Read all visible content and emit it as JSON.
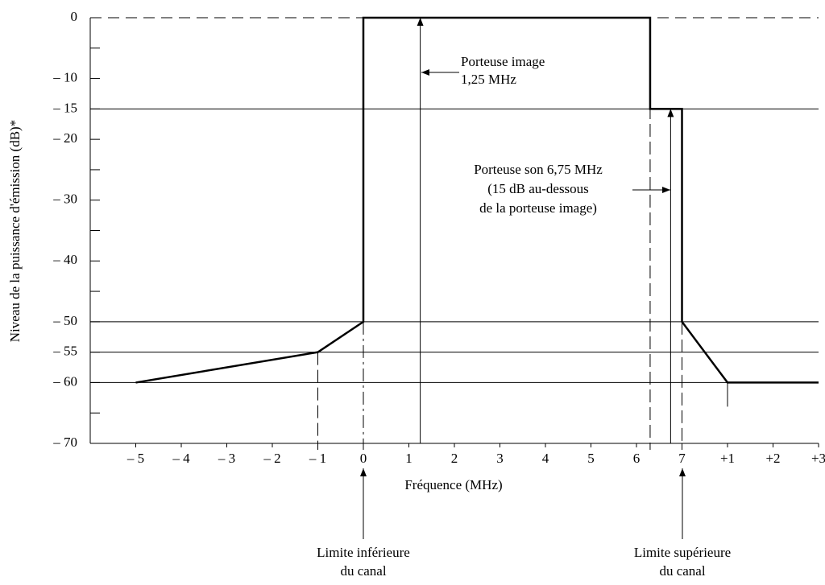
{
  "chart_data": {
    "type": "line",
    "xlabel": "Fréquence (MHz)",
    "ylabel": "Niveau de la puissance d'émission (dB)*",
    "series": [
      {
        "color": "#000000",
        "x": [
          -5,
          -1,
          0,
          0,
          6.3,
          6.3,
          7,
          7,
          8,
          10
        ],
        "values": [
          -60,
          -55,
          -50,
          0,
          0,
          -15,
          -15,
          -50,
          -60,
          -60
        ]
      }
    ],
    "xlim": [
      -6,
      10
    ],
    "xticks": [
      {
        "value": -5,
        "label": "– 5"
      },
      {
        "value": -4,
        "label": "– 4"
      },
      {
        "value": -3,
        "label": "– 3"
      },
      {
        "value": -2,
        "label": "– 2"
      },
      {
        "value": -1,
        "label": "– 1"
      },
      0,
      1,
      2,
      3,
      4,
      5,
      6,
      7,
      {
        "value": 8,
        "label": "+1"
      },
      {
        "value": 9,
        "label": "+2"
      },
      {
        "value": 10,
        "label": "+3"
      }
    ],
    "ylim": [
      -70,
      0
    ],
    "yticks": [
      0,
      {
        "value": -10,
        "label": "– 10"
      },
      {
        "value": -15,
        "label": "– 15"
      },
      {
        "value": -20,
        "label": "– 20"
      },
      {
        "value": -30,
        "label": "– 30"
      },
      {
        "value": -40,
        "label": "– 40"
      },
      {
        "value": -50,
        "label": "– 50"
      },
      {
        "value": -55,
        "label": "– 55"
      },
      {
        "value": -60,
        "label": "– 60"
      },
      {
        "value": -70,
        "label": "– 70"
      }
    ],
    "yminor": [
      -5,
      -25,
      -35,
      -45,
      -65
    ],
    "hlines": [
      -15,
      -50,
      -55,
      -60
    ],
    "top_dashed": 0,
    "guides": [
      {
        "x": -1,
        "from": -55,
        "style": "dashed"
      },
      {
        "x": 0,
        "from": -50,
        "style": "dashdot"
      },
      {
        "x": 6.3,
        "from": 0,
        "style": "dashed"
      },
      {
        "x": 7,
        "from": -50,
        "style": "dashed"
      },
      {
        "x": 8,
        "from": -60,
        "style": "solid"
      }
    ],
    "carriers": [
      {
        "x": 1.25,
        "level": 0
      },
      {
        "x": 6.75,
        "level": -15
      }
    ],
    "annotations": {
      "image": [
        "Porteuse image",
        "1,25 MHz"
      ],
      "son": [
        "Porteuse son 6,75 MHz",
        "(15 dB au-dessous",
        "de la porteuse image)"
      ],
      "lower": [
        "Limite inférieure",
        "du canal"
      ],
      "upper": [
        "Limite supérieure",
        "du canal"
      ]
    }
  }
}
